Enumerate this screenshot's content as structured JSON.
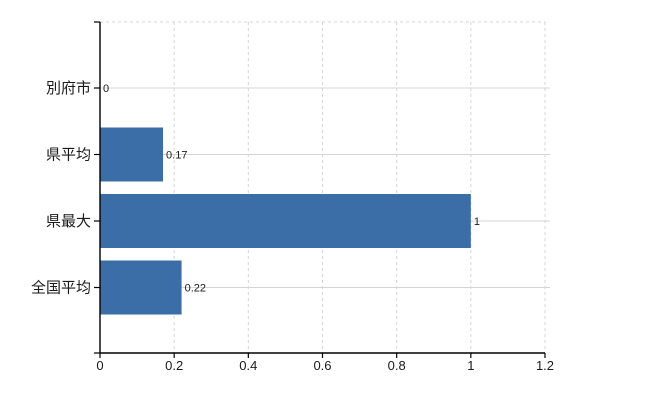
{
  "chart_data": {
    "type": "bar",
    "orientation": "horizontal",
    "title": "",
    "xlabel": "",
    "ylabel": "",
    "categories": [
      "別府市",
      "県平均",
      "県最大",
      "全国平均"
    ],
    "values": [
      0,
      0.17,
      1,
      0.22
    ],
    "value_labels": [
      "0",
      "0.17",
      "1",
      "0.22"
    ],
    "xlim": [
      0,
      1.2
    ],
    "x_tick_values": [
      0,
      0.2,
      0.4,
      0.6,
      0.8,
      1,
      1.2
    ],
    "x_tick_labels": [
      "0",
      "0.2",
      "0.4",
      "0.6",
      "0.8",
      "1",
      "1.2"
    ],
    "grid": "on",
    "legend": "none",
    "colors": {
      "bar": "#3b6da6",
      "gridline": "#d4d4d4",
      "axis": "#000000",
      "text": "#1a1a1a"
    }
  }
}
